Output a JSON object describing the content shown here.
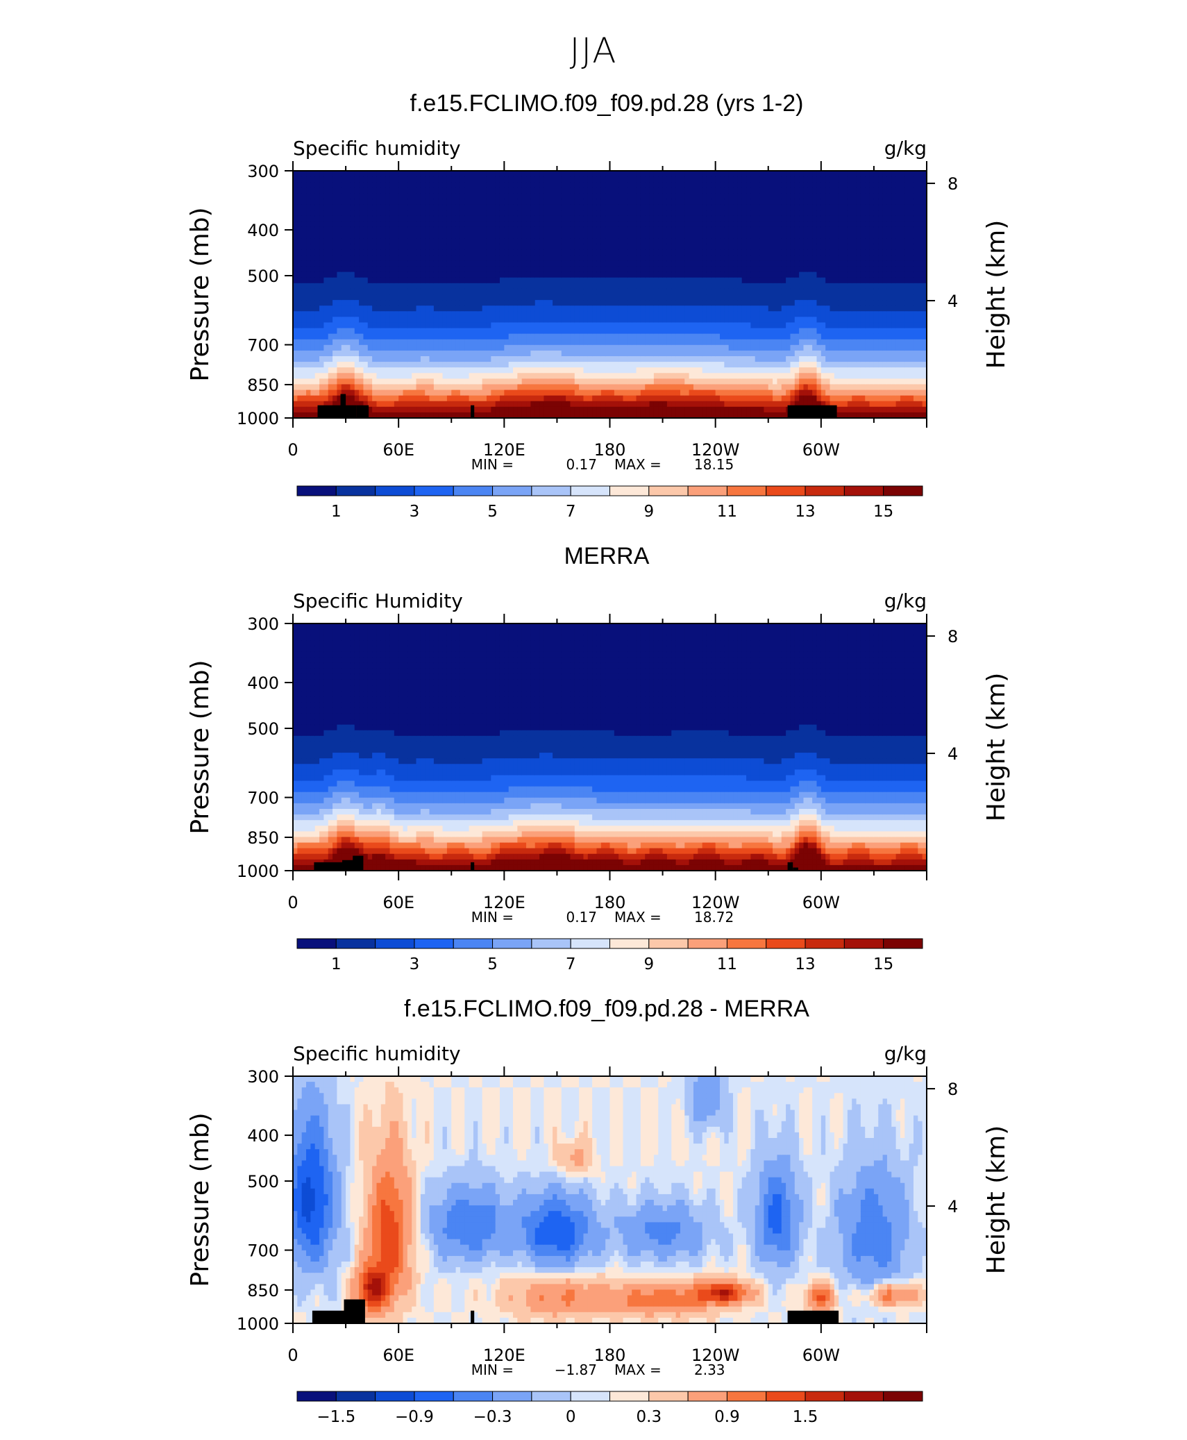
{
  "figure": {
    "title": "JJA"
  },
  "colors": {
    "main": [
      "#08107b",
      "#08329e",
      "#0d4cd5",
      "#1e64f2",
      "#4b85f3",
      "#7aa4f6",
      "#a9c4f8",
      "#d6e4fb",
      "#fde8d8",
      "#fcc8aa",
      "#fba07a",
      "#f7763f",
      "#ea4a1b",
      "#c82a0e",
      "#a41109",
      "#7b0303"
    ],
    "diff": [
      "#08107b",
      "#08329e",
      "#0d4cd5",
      "#1e64f2",
      "#4b85f3",
      "#7aa4f6",
      "#a9c4f8",
      "#d6e4fb",
      "#fde8d8",
      "#fcc8aa",
      "#fba07a",
      "#f7763f",
      "#ea4a1b",
      "#c82a0e",
      "#a41109",
      "#7b0303"
    ]
  },
  "chart_data": [
    {
      "type": "heatmap",
      "panel_title": "f.e15.FCLIMO.f09_f09.pd.28 (yrs 1-2)",
      "variable": "Specific humidity",
      "units": "g/kg",
      "ylabel": "Pressure (mb)",
      "y2label": "Height (km)",
      "xticks": [
        "0",
        "60E",
        "120E",
        "180",
        "120W",
        "60W"
      ],
      "yticks": [
        "300",
        "400",
        "500",
        "700",
        "850",
        "1000"
      ],
      "y2ticks": [
        "8",
        "4"
      ],
      "min_label": "MIN =",
      "min_value": "0.17",
      "max_label": "MAX =",
      "max_value": "18.15",
      "colorbar_labels": [
        "1",
        "3",
        "5",
        "7",
        "9",
        "11",
        "13",
        "15"
      ],
      "contour_levels": [
        1,
        2,
        3,
        4,
        5,
        6,
        7,
        8,
        9,
        10,
        11,
        12,
        13,
        14,
        15
      ],
      "mode": "model"
    },
    {
      "type": "heatmap",
      "panel_title": "MERRA",
      "variable": "Specific Humidity",
      "units": "g/kg",
      "ylabel": "Pressure (mb)",
      "y2label": "Height (km)",
      "xticks": [
        "0",
        "60E",
        "120E",
        "180",
        "120W",
        "60W"
      ],
      "yticks": [
        "300",
        "400",
        "500",
        "700",
        "850",
        "1000"
      ],
      "y2ticks": [
        "8",
        "4"
      ],
      "min_label": "MIN =",
      "min_value": "0.17",
      "max_label": "MAX =",
      "max_value": "18.72",
      "colorbar_labels": [
        "1",
        "3",
        "5",
        "7",
        "9",
        "11",
        "13",
        "15"
      ],
      "contour_levels": [
        1,
        2,
        3,
        4,
        5,
        6,
        7,
        8,
        9,
        10,
        11,
        12,
        13,
        14,
        15
      ],
      "mode": "obs"
    },
    {
      "type": "heatmap",
      "panel_title": "f.e15.FCLIMO.f09_f09.pd.28 - MERRA",
      "variable": "Specific humidity",
      "units": "g/kg",
      "ylabel": "Pressure (mb)",
      "y2label": "Height (km)",
      "xticks": [
        "0",
        "60E",
        "120E",
        "180",
        "120W",
        "60W"
      ],
      "yticks": [
        "300",
        "400",
        "500",
        "700",
        "850",
        "1000"
      ],
      "y2ticks": [
        "8",
        "4"
      ],
      "min_label": "MIN =",
      "min_value": "−1.87",
      "max_label": "MAX =",
      "max_value": "2.33",
      "colorbar_labels": [
        "−1.5",
        "−0.9",
        "−0.3",
        "0",
        "0.3",
        "0.9",
        "1.5"
      ],
      "contour_levels": [
        -1.8,
        -1.5,
        -1.2,
        -0.9,
        -0.6,
        -0.3,
        -0.1,
        0,
        0.1,
        0.3,
        0.6,
        0.9,
        1.2,
        1.5,
        1.8
      ],
      "mode": "diff"
    }
  ]
}
